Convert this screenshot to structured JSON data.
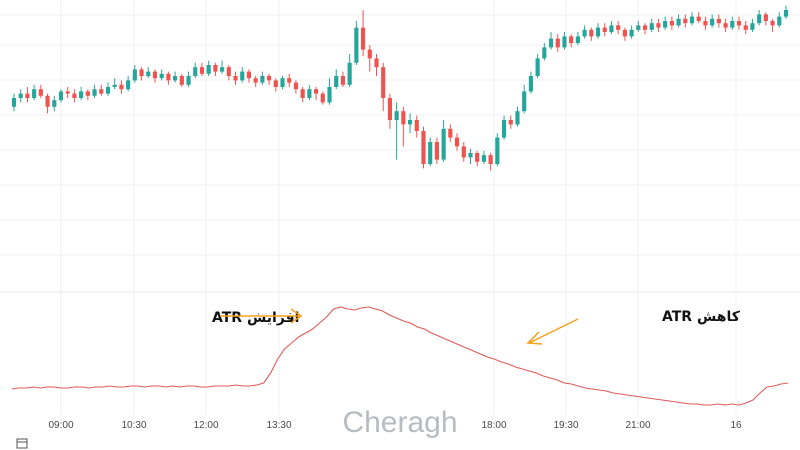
{
  "chart_data": {
    "type": "candlestick",
    "colors": {
      "up": "#26a69a",
      "down": "#ef5350",
      "atr_line": "#e05a5a",
      "arrow": "#f5a11c",
      "grid": "#eef0f3"
    },
    "x_ticks": [
      "09:00",
      "10:30",
      "12:00",
      "13:30",
      "18:00",
      "19:30",
      "21:00",
      "16"
    ],
    "candles": [
      [
        0.56,
        0.6,
        0.62,
        0.54
      ],
      [
        0.6,
        0.62,
        0.64,
        0.58
      ],
      [
        0.62,
        0.6,
        0.65,
        0.58
      ],
      [
        0.6,
        0.64,
        0.66,
        0.59
      ],
      [
        0.64,
        0.61,
        0.66,
        0.6
      ],
      [
        0.61,
        0.56,
        0.62,
        0.53
      ],
      [
        0.56,
        0.59,
        0.61,
        0.54
      ],
      [
        0.59,
        0.63,
        0.64,
        0.58
      ],
      [
        0.63,
        0.62,
        0.65,
        0.6
      ],
      [
        0.62,
        0.6,
        0.64,
        0.58
      ],
      [
        0.6,
        0.63,
        0.65,
        0.59
      ],
      [
        0.63,
        0.61,
        0.64,
        0.59
      ],
      [
        0.61,
        0.64,
        0.66,
        0.6
      ],
      [
        0.64,
        0.62,
        0.66,
        0.61
      ],
      [
        0.62,
        0.65,
        0.67,
        0.61
      ],
      [
        0.65,
        0.66,
        0.69,
        0.64
      ],
      [
        0.66,
        0.64,
        0.68,
        0.62
      ],
      [
        0.64,
        0.68,
        0.7,
        0.63
      ],
      [
        0.68,
        0.73,
        0.75,
        0.67
      ],
      [
        0.73,
        0.7,
        0.74,
        0.68
      ],
      [
        0.7,
        0.72,
        0.74,
        0.69
      ],
      [
        0.72,
        0.69,
        0.73,
        0.67
      ],
      [
        0.69,
        0.71,
        0.73,
        0.68
      ],
      [
        0.71,
        0.68,
        0.72,
        0.66
      ],
      [
        0.68,
        0.7,
        0.72,
        0.67
      ],
      [
        0.7,
        0.66,
        0.71,
        0.65
      ],
      [
        0.66,
        0.7,
        0.72,
        0.65
      ],
      [
        0.7,
        0.74,
        0.76,
        0.69
      ],
      [
        0.74,
        0.71,
        0.76,
        0.7
      ],
      [
        0.71,
        0.75,
        0.77,
        0.7
      ],
      [
        0.75,
        0.72,
        0.76,
        0.7
      ],
      [
        0.72,
        0.74,
        0.77,
        0.71
      ],
      [
        0.74,
        0.7,
        0.75,
        0.68
      ],
      [
        0.7,
        0.68,
        0.72,
        0.66
      ],
      [
        0.68,
        0.72,
        0.74,
        0.67
      ],
      [
        0.72,
        0.69,
        0.73,
        0.67
      ],
      [
        0.69,
        0.67,
        0.7,
        0.65
      ],
      [
        0.67,
        0.7,
        0.72,
        0.66
      ],
      [
        0.7,
        0.68,
        0.71,
        0.66
      ],
      [
        0.68,
        0.65,
        0.69,
        0.63
      ],
      [
        0.65,
        0.69,
        0.7,
        0.64
      ],
      [
        0.69,
        0.67,
        0.71,
        0.65
      ],
      [
        0.67,
        0.64,
        0.68,
        0.62
      ],
      [
        0.64,
        0.6,
        0.65,
        0.58
      ],
      [
        0.6,
        0.64,
        0.66,
        0.59
      ],
      [
        0.64,
        0.62,
        0.65,
        0.59
      ],
      [
        0.62,
        0.58,
        0.63,
        0.57
      ],
      [
        0.58,
        0.65,
        0.69,
        0.57
      ],
      [
        0.65,
        0.7,
        0.73,
        0.64
      ],
      [
        0.7,
        0.66,
        0.72,
        0.65
      ],
      [
        0.66,
        0.76,
        0.8,
        0.65
      ],
      [
        0.76,
        0.92,
        0.95,
        0.75
      ],
      [
        0.92,
        0.82,
        1.0,
        0.79
      ],
      [
        0.82,
        0.78,
        0.84,
        0.72
      ],
      [
        0.78,
        0.74,
        0.8,
        0.7
      ],
      [
        0.74,
        0.6,
        0.76,
        0.54
      ],
      [
        0.6,
        0.5,
        0.62,
        0.46
      ],
      [
        0.5,
        0.54,
        0.58,
        0.32
      ],
      [
        0.54,
        0.48,
        0.56,
        0.38
      ],
      [
        0.48,
        0.5,
        0.53,
        0.44
      ],
      [
        0.5,
        0.45,
        0.52,
        0.42
      ],
      [
        0.45,
        0.3,
        0.47,
        0.28
      ],
      [
        0.3,
        0.4,
        0.42,
        0.29
      ],
      [
        0.4,
        0.32,
        0.42,
        0.3
      ],
      [
        0.32,
        0.46,
        0.5,
        0.31
      ],
      [
        0.46,
        0.42,
        0.48,
        0.4
      ],
      [
        0.42,
        0.38,
        0.44,
        0.36
      ],
      [
        0.38,
        0.33,
        0.4,
        0.31
      ],
      [
        0.33,
        0.35,
        0.37,
        0.3
      ],
      [
        0.35,
        0.31,
        0.36,
        0.29
      ],
      [
        0.31,
        0.34,
        0.36,
        0.3
      ],
      [
        0.34,
        0.3,
        0.35,
        0.27
      ],
      [
        0.3,
        0.42,
        0.44,
        0.29
      ],
      [
        0.42,
        0.5,
        0.52,
        0.41
      ],
      [
        0.5,
        0.48,
        0.52,
        0.46
      ],
      [
        0.48,
        0.54,
        0.56,
        0.47
      ],
      [
        0.54,
        0.63,
        0.66,
        0.53
      ],
      [
        0.63,
        0.7,
        0.72,
        0.62
      ],
      [
        0.7,
        0.78,
        0.8,
        0.69
      ],
      [
        0.78,
        0.83,
        0.85,
        0.77
      ],
      [
        0.83,
        0.87,
        0.9,
        0.82
      ],
      [
        0.87,
        0.83,
        0.89,
        0.81
      ],
      [
        0.83,
        0.88,
        0.9,
        0.82
      ],
      [
        0.88,
        0.85,
        0.89,
        0.83
      ],
      [
        0.85,
        0.88,
        0.9,
        0.84
      ],
      [
        0.88,
        0.91,
        0.93,
        0.87
      ],
      [
        0.91,
        0.88,
        0.92,
        0.86
      ],
      [
        0.88,
        0.92,
        0.94,
        0.87
      ],
      [
        0.92,
        0.9,
        0.94,
        0.88
      ],
      [
        0.9,
        0.93,
        0.95,
        0.89
      ],
      [
        0.93,
        0.91,
        0.95,
        0.89
      ],
      [
        0.91,
        0.88,
        0.92,
        0.86
      ],
      [
        0.88,
        0.91,
        0.93,
        0.87
      ],
      [
        0.91,
        0.93,
        0.95,
        0.9
      ],
      [
        0.93,
        0.91,
        0.94,
        0.89
      ],
      [
        0.91,
        0.94,
        0.96,
        0.9
      ],
      [
        0.94,
        0.92,
        0.96,
        0.9
      ],
      [
        0.92,
        0.95,
        0.97,
        0.91
      ],
      [
        0.95,
        0.93,
        0.97,
        0.91
      ],
      [
        0.93,
        0.96,
        0.98,
        0.92
      ],
      [
        0.96,
        0.94,
        0.98,
        0.92
      ],
      [
        0.94,
        0.97,
        0.99,
        0.93
      ],
      [
        0.97,
        0.95,
        0.99,
        0.94
      ],
      [
        0.95,
        0.93,
        0.97,
        0.91
      ],
      [
        0.93,
        0.96,
        0.98,
        0.92
      ],
      [
        0.96,
        0.94,
        0.98,
        0.92
      ],
      [
        0.94,
        0.92,
        0.96,
        0.9
      ],
      [
        0.92,
        0.95,
        0.97,
        0.91
      ],
      [
        0.95,
        0.93,
        0.97,
        0.91
      ],
      [
        0.93,
        0.91,
        0.95,
        0.89
      ],
      [
        0.91,
        0.94,
        0.96,
        0.9
      ],
      [
        0.94,
        0.98,
        1.0,
        0.93
      ],
      [
        0.98,
        0.95,
        0.99,
        0.93
      ],
      [
        0.95,
        0.93,
        0.96,
        0.9
      ],
      [
        0.93,
        0.97,
        0.99,
        0.92
      ],
      [
        0.97,
        1.0,
        1.02,
        0.96
      ]
    ],
    "atr": [
      0.16,
      0.17,
      0.17,
      0.18,
      0.17,
      0.18,
      0.18,
      0.17,
      0.17,
      0.18,
      0.18,
      0.17,
      0.18,
      0.18,
      0.19,
      0.18,
      0.18,
      0.19,
      0.19,
      0.18,
      0.19,
      0.19,
      0.18,
      0.19,
      0.18,
      0.19,
      0.19,
      0.18,
      0.18,
      0.19,
      0.19,
      0.19,
      0.2,
      0.19,
      0.19,
      0.2,
      0.22,
      0.32,
      0.46,
      0.56,
      0.62,
      0.68,
      0.72,
      0.76,
      0.82,
      0.88,
      0.96,
      0.98,
      0.96,
      0.95,
      0.97,
      0.98,
      0.96,
      0.94,
      0.9,
      0.87,
      0.84,
      0.82,
      0.78,
      0.76,
      0.72,
      0.69,
      0.66,
      0.63,
      0.6,
      0.57,
      0.54,
      0.51,
      0.48,
      0.46,
      0.43,
      0.41,
      0.38,
      0.36,
      0.34,
      0.32,
      0.29,
      0.27,
      0.25,
      0.22,
      0.21,
      0.19,
      0.17,
      0.16,
      0.15,
      0.14,
      0.12,
      0.11,
      0.1,
      0.09,
      0.08,
      0.07,
      0.06,
      0.05,
      0.04,
      0.03,
      0.02,
      0.01,
      0.01,
      0.0,
      0.0,
      0.01,
      0.0,
      0.01,
      0.0,
      0.02,
      0.05,
      0.12,
      0.18,
      0.19,
      0.21,
      0.22
    ],
    "annotations": [
      {
        "text": "افزایش ATR",
        "direction": "increase"
      },
      {
        "text": "کاهش ATR",
        "direction": "decrease"
      }
    ]
  },
  "watermark": "Cheragh",
  "icons": {
    "bottom_left": "calendar-icon"
  }
}
